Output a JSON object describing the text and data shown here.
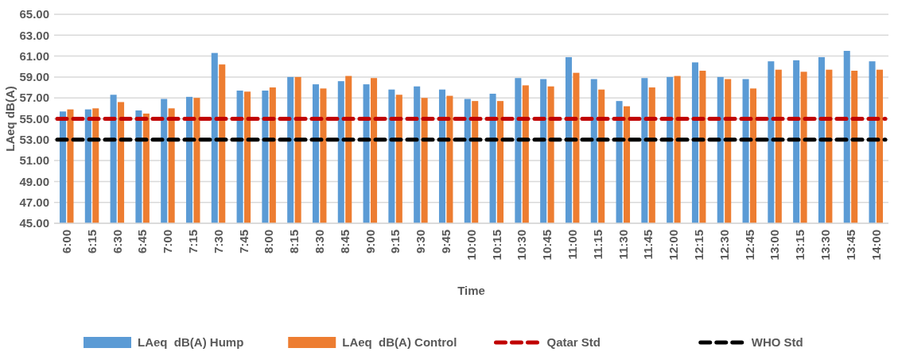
{
  "chart_data": {
    "type": "bar",
    "xlabel": "Time",
    "ylabel": "LAeq dB(A)",
    "categories": [
      "6:00",
      "6:15",
      "6:30",
      "6:45",
      "7:00",
      "7:15",
      "7:30",
      "7:45",
      "8:00",
      "8:15",
      "8:30",
      "8:45",
      "9:00",
      "9:15",
      "9:30",
      "9:45",
      "10:00",
      "10:15",
      "10:30",
      "10:45",
      "11:00",
      "11:15",
      "11:30",
      "11:45",
      "12:00",
      "12:15",
      "12:30",
      "12:45",
      "13:00",
      "13:15",
      "13:30",
      "13:45",
      "14:00"
    ],
    "series": [
      {
        "name": "LAeq  dB(A) Hump",
        "color": "#5b9bd5",
        "values": [
          55.7,
          55.9,
          57.3,
          55.8,
          56.9,
          57.1,
          61.3,
          57.7,
          57.7,
          59.0,
          58.3,
          58.6,
          58.3,
          57.8,
          58.1,
          57.8,
          56.9,
          57.4,
          58.9,
          58.8,
          60.9,
          58.8,
          56.7,
          58.9,
          59.0,
          60.4,
          59.0,
          58.8,
          60.5,
          60.6,
          60.9,
          61.5,
          60.5
        ]
      },
      {
        "name": "LAeq  dB(A) Control",
        "color": "#ed7d31",
        "values": [
          55.9,
          56.0,
          56.6,
          55.5,
          56.0,
          57.0,
          60.2,
          57.6,
          58.0,
          59.0,
          57.9,
          59.1,
          58.9,
          57.3,
          57.0,
          57.2,
          56.7,
          56.7,
          58.2,
          58.1,
          59.4,
          57.8,
          56.2,
          58.0,
          59.1,
          59.6,
          58.8,
          57.9,
          59.7,
          59.5,
          59.7,
          59.6,
          59.7
        ]
      }
    ],
    "ref_lines": [
      {
        "axis": "y",
        "value": 55,
        "label": "Qatar Std",
        "color": "#c00000",
        "line_style": "dashed"
      },
      {
        "axis": "y",
        "value": 53,
        "label": "WHO Std",
        "color": "#000000",
        "line_style": "dashed"
      }
    ],
    "ylim": [
      45,
      65
    ],
    "yticks": [
      {
        "value": 45,
        "label": "45.00"
      },
      {
        "value": 47,
        "label": "47.00"
      },
      {
        "value": 49,
        "label": "49.00"
      },
      {
        "value": 51,
        "label": "51.00"
      },
      {
        "value": 53,
        "label": "53.00"
      },
      {
        "value": 55,
        "label": "55.00"
      },
      {
        "value": 57,
        "label": "57.00"
      },
      {
        "value": 59,
        "label": "59.00"
      },
      {
        "value": 61,
        "label": "61.00"
      },
      {
        "value": 63,
        "label": "63.00"
      },
      {
        "value": 65,
        "label": "65.00"
      }
    ],
    "grid": "y",
    "legend": "bottom"
  }
}
